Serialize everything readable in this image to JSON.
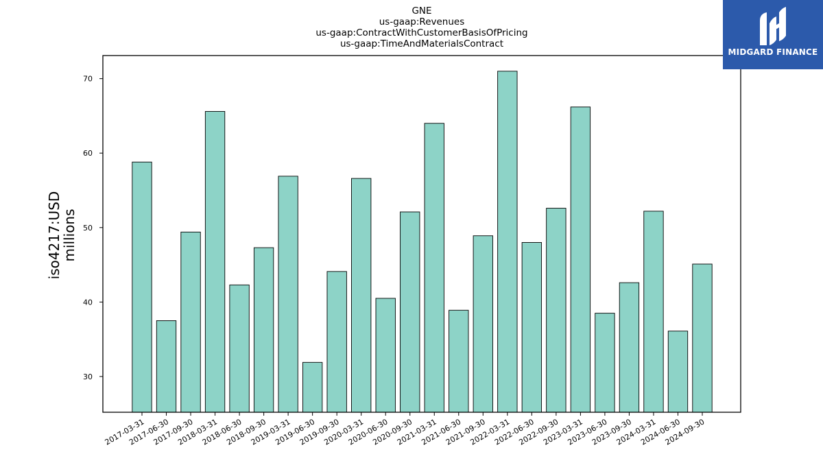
{
  "logo": {
    "text": "MIDGARD FINANCE",
    "background_color": "#2c5aab",
    "icon": "midgard-logo-mark"
  },
  "chart_data": {
    "type": "bar",
    "title_lines": [
      "GNE",
      "us-gaap:Revenues",
      "us-gaap:ContractWithCustomerBasisOfPricing",
      "us-gaap:TimeAndMaterialsContract"
    ],
    "ylabel_lines": [
      "iso4217:USD",
      "millions"
    ],
    "xlabel": "",
    "categories": [
      "2017-03-31",
      "2017-06-30",
      "2017-09-30",
      "2018-03-31",
      "2018-06-30",
      "2018-09-30",
      "2019-03-31",
      "2019-06-30",
      "2019-09-30",
      "2020-03-31",
      "2020-06-30",
      "2020-09-30",
      "2021-03-31",
      "2021-06-30",
      "2021-09-30",
      "2022-03-31",
      "2022-06-30",
      "2022-09-30",
      "2023-03-31",
      "2023-06-30",
      "2023-09-30",
      "2024-03-31",
      "2024-06-30",
      "2024-09-30"
    ],
    "values": [
      58.8,
      37.5,
      49.4,
      65.6,
      42.3,
      47.3,
      56.9,
      31.9,
      44.1,
      56.6,
      40.5,
      52.1,
      64.0,
      38.9,
      48.9,
      71.0,
      48.0,
      52.6,
      66.2,
      38.5,
      42.6,
      52.2,
      36.1,
      45.1
    ],
    "yticks": [
      30,
      40,
      50,
      60,
      70
    ],
    "ylim": [
      25.2,
      73.1
    ],
    "bar_color": "#8dd3c7",
    "bar_edge_color": "#000000",
    "grid": false,
    "legend": "none"
  }
}
